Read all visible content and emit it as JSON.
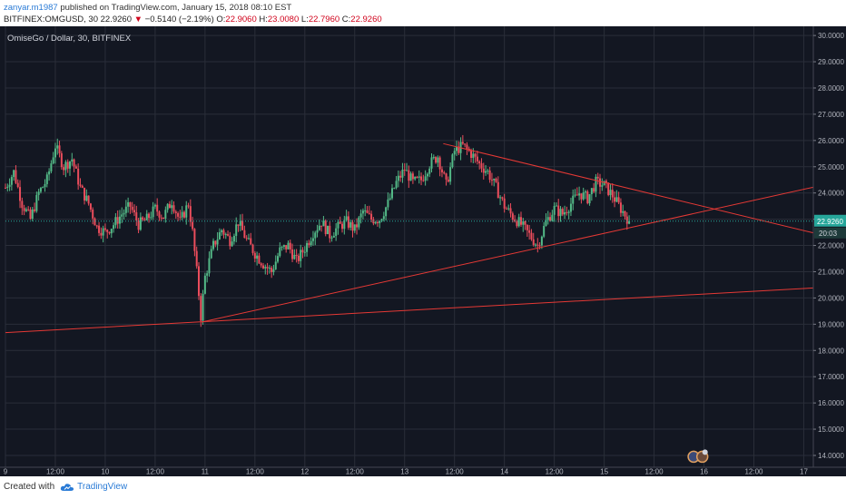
{
  "header": {
    "author": "zanyar.m1987",
    "published_text": " published on TradingView.com, January 15, 2018 08:10 EST",
    "symbol": "BITFINEX:OMGUSD, 30",
    "last": "22.9260",
    "arrow": "▼",
    "change": "−0.5140 (−2.19%)",
    "o_label": "O:",
    "o": "22.9060",
    "h_label": "H:",
    "h": "23.0080",
    "l_label": "L:",
    "l": "22.7960",
    "c_label": "C:",
    "c": "22.9260"
  },
  "chart_data": {
    "type": "candlestick",
    "title": "OmiseGo / Dollar, 30, BITFINEX",
    "x_ticks": [
      "9",
      "12:00",
      "10",
      "12:00",
      "11",
      "12:00",
      "12",
      "12:00",
      "13",
      "12:00",
      "14",
      "12:00",
      "15",
      "12:00",
      "16",
      "12:00",
      "17"
    ],
    "x_tick_hours": [
      0,
      12,
      24,
      36,
      48,
      60,
      72,
      84,
      96,
      108,
      120,
      132,
      144,
      156,
      168,
      180,
      192
    ],
    "x_range_hours": [
      0,
      194.3
    ],
    "y_range": [
      13.55,
      30.35
    ],
    "y_ticks": [
      "30.0000",
      "29.0000",
      "28.0000",
      "27.0000",
      "26.0000",
      "25.0000",
      "24.0000",
      "23.0000",
      "22.0000",
      "21.0000",
      "20.0000",
      "19.0000",
      "18.0000",
      "17.0000",
      "16.0000",
      "15.0000",
      "14.0000"
    ],
    "last_price_label": "22.9260",
    "countdown_label": "20:03",
    "last_price": 22.926,
    "price_path_hours": [
      0,
      2,
      4,
      6,
      8,
      10,
      12,
      14,
      16,
      18,
      20,
      22,
      24,
      26,
      28,
      30,
      32,
      34,
      36,
      38,
      40,
      42,
      44,
      45,
      46,
      47,
      48,
      50,
      52,
      54,
      56,
      58,
      60,
      62,
      64,
      66,
      68,
      70,
      72,
      74,
      76,
      78,
      80,
      82,
      84,
      86,
      88,
      90,
      92,
      94,
      96,
      98,
      100,
      102,
      104,
      106,
      108,
      110,
      112,
      114,
      116,
      118,
      120,
      122,
      124,
      126,
      128,
      130,
      132,
      134,
      136,
      138,
      140,
      142,
      144,
      146,
      148,
      150
    ],
    "price_path_values": [
      24.2,
      24.8,
      23.6,
      23.0,
      24.0,
      24.5,
      25.8,
      25.0,
      25.3,
      24.2,
      23.6,
      22.7,
      22.5,
      22.8,
      23.2,
      23.5,
      22.8,
      23.0,
      23.4,
      23.1,
      23.7,
      22.9,
      23.6,
      22.5,
      21.0,
      19.3,
      20.8,
      22.0,
      22.6,
      22.2,
      22.9,
      22.2,
      21.7,
      21.3,
      21.0,
      21.8,
      22.0,
      21.4,
      21.9,
      22.5,
      22.9,
      22.4,
      22.7,
      22.9,
      22.6,
      23.3,
      23.0,
      23.0,
      23.6,
      24.4,
      24.9,
      24.4,
      24.5,
      25.1,
      25.4,
      24.3,
      25.6,
      25.8,
      25.5,
      25.1,
      24.8,
      24.2,
      23.5,
      23.1,
      22.8,
      22.4,
      22.0,
      22.9,
      23.4,
      23.2,
      23.6,
      24.0,
      23.8,
      24.4,
      24.3,
      23.9,
      23.4,
      22.93
    ],
    "trendlines": [
      {
        "name": "lower-support",
        "x": [
          0,
          194.3
        ],
        "y": [
          18.68,
          20.38
        ]
      },
      {
        "name": "rising-support",
        "x": [
          47.2,
          194.3
        ],
        "y": [
          19.08,
          24.22
        ]
      },
      {
        "name": "falling-resistance",
        "x": [
          105.3,
          194.3
        ],
        "y": [
          25.88,
          22.48
        ]
      }
    ],
    "grid": true,
    "legend": "none",
    "colors": {
      "background": "#131722",
      "up": "#53b987",
      "down": "#eb4d5c",
      "trendline": "#e53935",
      "last_price": "#26a69a",
      "grid": "#2a2e39"
    }
  },
  "footer": {
    "created_with": "Created with",
    "brand": "TradingView",
    "brand_icon": "tradingview-cloud-icon"
  }
}
